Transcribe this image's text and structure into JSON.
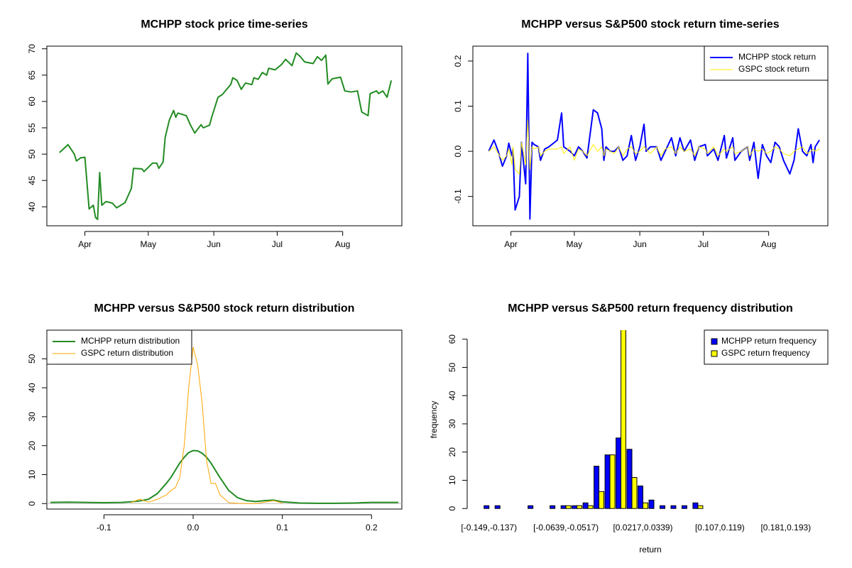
{
  "chart_data": [
    {
      "type": "line",
      "title": "MCHPP stock price time-series",
      "color": "#228B22",
      "x": [
        78,
        82,
        85,
        86,
        88,
        90,
        92,
        94,
        95,
        96,
        97,
        98,
        100,
        103,
        105,
        109,
        112,
        113,
        117,
        118,
        120,
        122,
        124,
        125,
        127,
        128,
        130,
        132,
        133,
        134,
        138,
        140,
        142,
        145,
        146,
        149,
        150,
        153,
        155,
        159,
        160,
        162,
        164,
        166,
        169,
        170,
        172,
        174,
        176,
        177,
        180,
        183,
        185,
        188,
        190,
        192,
        194,
        198,
        200,
        202,
        204,
        205,
        207,
        211,
        213,
        216,
        219,
        221,
        224,
        225,
        228,
        229,
        231,
        233,
        235
      ],
      "values": [
        50.3,
        51.8,
        50.0,
        48.7,
        49.3,
        49.4,
        39.6,
        40.3,
        38.0,
        37.6,
        46.5,
        40.3,
        41.0,
        40.7,
        39.8,
        40.8,
        43.5,
        47.3,
        47.2,
        46.7,
        47.5,
        48.3,
        48.3,
        47.3,
        48.5,
        53.2,
        56.5,
        58.3,
        57.0,
        57.8,
        57.3,
        55.5,
        54.0,
        55.6,
        55.0,
        55.5,
        57.0,
        60.8,
        61.3,
        63.2,
        64.5,
        64.0,
        62.3,
        63.5,
        63.2,
        64.5,
        64.2,
        65.5,
        65.0,
        66.3,
        66.0,
        67.0,
        68.0,
        66.8,
        69.2,
        68.5,
        67.5,
        67.2,
        68.5,
        67.8,
        68.8,
        63.3,
        64.3,
        64.6,
        62.0,
        61.8,
        62.0,
        58.0,
        57.3,
        61.5,
        62.0,
        61.5,
        62.0,
        60.8,
        64.0
      ],
      "xlim": [
        72,
        240
      ],
      "xticks": [
        {
          "value": 90,
          "label": "Apr"
        },
        {
          "value": 120,
          "label": "May"
        },
        {
          "value": 151,
          "label": "Jun"
        },
        {
          "value": 181,
          "label": "Jul"
        },
        {
          "value": 212,
          "label": "Aug"
        }
      ],
      "ylim": [
        36.4,
        70.5
      ],
      "yticks": [
        40,
        45,
        50,
        55,
        60,
        65,
        70
      ]
    },
    {
      "type": "line",
      "title": "MCHPP versus S&P500 stock return time-series",
      "legend": "top-right",
      "x": [
        79.5,
        82,
        84,
        86,
        88,
        89,
        90.5,
        91,
        92,
        94,
        95,
        97,
        98,
        99,
        100,
        101,
        103,
        104,
        106,
        108,
        112,
        114,
        115,
        118,
        120,
        122,
        124,
        126,
        129,
        131,
        133,
        134,
        135,
        137,
        139,
        141,
        143,
        145,
        147,
        149,
        151,
        153,
        154,
        156,
        159,
        161,
        163,
        166,
        168,
        170,
        172,
        175,
        177,
        179,
        182,
        183,
        186,
        188,
        191,
        192,
        195,
        196,
        199,
        202,
        203,
        205,
        207,
        209,
        211,
        213,
        215,
        217,
        219,
        222,
        224,
        226,
        228,
        230,
        232,
        233,
        234,
        236
      ],
      "series": [
        {
          "name": "MCHPP stock return",
          "color": "#0000FF",
          "values": [
            0.0,
            0.025,
            0.0,
            -0.033,
            -0.01,
            0.018,
            -0.01,
            0.005,
            -0.13,
            -0.1,
            0.02,
            -0.072,
            0.217,
            -0.15,
            0.02,
            0.015,
            0.01,
            -0.02,
            0.005,
            0.01,
            0.025,
            0.085,
            0.01,
            0.0,
            -0.01,
            0.01,
            0.0,
            -0.015,
            0.092,
            0.085,
            0.05,
            -0.02,
            0.01,
            0.0,
            0.0,
            0.01,
            -0.02,
            -0.01,
            0.035,
            -0.02,
            0.01,
            0.06,
            0.0,
            0.01,
            0.01,
            -0.02,
            0.0,
            0.03,
            -0.01,
            0.03,
            0.0,
            0.025,
            -0.02,
            0.01,
            0.015,
            -0.01,
            0.005,
            -0.02,
            0.035,
            -0.015,
            0.03,
            -0.02,
            0.0,
            0.01,
            -0.02,
            0.02,
            -0.06,
            0.015,
            -0.01,
            -0.025,
            0.02,
            0.01,
            -0.02,
            -0.05,
            -0.02,
            0.05,
            0.0,
            -0.01,
            0.015,
            -0.025,
            0.01,
            0.025
          ]
        },
        {
          "name": "GSPC stock return",
          "color": "#FFEE00",
          "values": [
            0.0,
            0.01,
            -0.005,
            -0.02,
            -0.01,
            0.005,
            -0.03,
            0.01,
            -0.04,
            -0.05,
            0.02,
            -0.03,
            0.07,
            -0.04,
            0.01,
            0.005,
            0.01,
            -0.01,
            0.0,
            0.005,
            0.005,
            0.01,
            -0.005,
            0.01,
            -0.02,
            0.005,
            0.0,
            -0.01,
            0.015,
            0.0,
            0.01,
            -0.01,
            0.005,
            0.0,
            -0.005,
            0.01,
            -0.01,
            0.005,
            0.01,
            -0.005,
            0.0,
            0.01,
            0.005,
            -0.005,
            0.01,
            -0.01,
            0.005,
            0.01,
            -0.005,
            0.01,
            0.0,
            0.005,
            -0.01,
            0.01,
            0.005,
            -0.005,
            0.01,
            -0.01,
            0.005,
            0.0,
            0.01,
            -0.005,
            0.0,
            0.01,
            -0.01,
            0.005,
            0.0,
            0.005,
            -0.005,
            0.0,
            0.01,
            0.005,
            -0.005,
            -0.01,
            0.0,
            0.005,
            0.01,
            -0.005,
            0.0,
            0.005,
            0.0,
            0.005
          ]
        }
      ],
      "xlim": [
        72,
        240
      ],
      "xticks": [
        {
          "value": 90,
          "label": "Apr"
        },
        {
          "value": 120,
          "label": "May"
        },
        {
          "value": 151,
          "label": "Jun"
        },
        {
          "value": 181,
          "label": "Jul"
        },
        {
          "value": 212,
          "label": "Aug"
        }
      ],
      "ylim": [
        -0.165,
        0.233
      ],
      "yticks": [
        -0.1,
        {
          "value": 0,
          "label": "0.0"
        },
        0.1,
        0.2
      ]
    },
    {
      "type": "line",
      "title": "MCHPP versus S&P500 stock return distribution",
      "legend": "top-left",
      "x": [
        -0.16,
        -0.14,
        -0.12,
        -0.1,
        -0.08,
        -0.07,
        -0.06,
        -0.05,
        -0.04,
        -0.03,
        -0.025,
        -0.02,
        -0.015,
        -0.01,
        -0.005,
        0,
        0.005,
        0.01,
        0.015,
        0.02,
        0.025,
        0.03,
        0.04,
        0.05,
        0.06,
        0.07,
        0.08,
        0.09,
        0.1,
        0.12,
        0.14,
        0.16,
        0.18,
        0.2,
        0.23
      ],
      "series": [
        {
          "name": "MCHPP return distribution",
          "color": "#228B22",
          "values": [
            0.4,
            0.5,
            0.4,
            0.3,
            0.4,
            0.6,
            0.9,
            1.5,
            3.5,
            7.0,
            9.0,
            11.5,
            14.0,
            16.0,
            17.6,
            18.3,
            18.2,
            17.4,
            16.0,
            14.0,
            11.5,
            9.0,
            4.5,
            2.0,
            1.0,
            0.7,
            1.0,
            1.2,
            0.6,
            0.2,
            0.1,
            0.1,
            0.2,
            0.4,
            0.4
          ]
        },
        {
          "name": "GSPC return distribution",
          "color": "#FFA500",
          "values": [
            null,
            null,
            null,
            null,
            null,
            0.3,
            1.5,
            0.5,
            1.5,
            3.0,
            4.5,
            5.5,
            9,
            20,
            40,
            54,
            48,
            35,
            15,
            7,
            7,
            3,
            0.3,
            0.1,
            0.0,
            0.0,
            0.5,
            1.0,
            0.2,
            null,
            null,
            null,
            null,
            null,
            null
          ]
        }
      ],
      "xlim": [
        -0.164,
        0.234
      ],
      "xticks": [
        -0.1,
        {
          "value": 0,
          "label": "0.0"
        },
        0.1,
        0.2
      ],
      "ylim": [
        -1.9,
        59.9
      ],
      "yticks": [
        0,
        10,
        20,
        30,
        40,
        50
      ]
    },
    {
      "type": "bar",
      "title": "MCHPP versus S&P500 return frequency distribution",
      "legend": "top-right",
      "xlabel": "return",
      "ylabel": "frequency",
      "categories": [
        "[-0.149,-0.137)",
        null,
        null,
        null,
        null,
        null,
        null,
        "[-0.0639,-0.0517)",
        null,
        null,
        null,
        null,
        null,
        null,
        "[0.0217,0.0339)",
        null,
        null,
        null,
        null,
        null,
        null,
        "[0.107,0.119)",
        null,
        null,
        null,
        null,
        null,
        "[0.181,0.193)",
        null,
        null,
        null
      ],
      "series": [
        {
          "name": "MCHPP return frequency",
          "color": "#0000FF",
          "values": [
            1,
            1,
            0,
            0,
            1,
            0,
            1,
            1,
            1,
            2,
            15,
            19,
            25,
            21,
            8,
            3,
            1,
            1,
            1,
            2,
            0,
            0,
            0,
            0,
            0,
            0,
            0,
            0,
            0,
            0,
            0
          ]
        },
        {
          "name": "GSPC return frequency",
          "color": "#FFFF00",
          "values": [
            0,
            0,
            0,
            0,
            0,
            0,
            0,
            1,
            1,
            1,
            6,
            19,
            64,
            11,
            2,
            0,
            0,
            0,
            0,
            1,
            0,
            0,
            0,
            0,
            0,
            0,
            0,
            0,
            0,
            0,
            0
          ]
        }
      ],
      "ylim": [
        -0.2,
        63.2
      ],
      "yticks": [
        0,
        10,
        20,
        30,
        40,
        50,
        60
      ]
    }
  ]
}
